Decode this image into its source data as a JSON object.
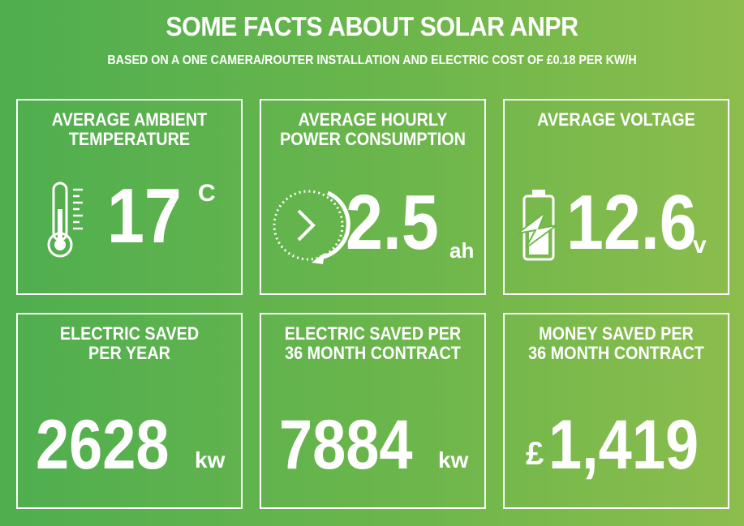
{
  "header": {
    "title": "SOME FACTS ABOUT SOLAR ANPR",
    "subtitle": "BASED ON A ONE CAMERA/ROUTER INSTALLATION AND ELECTRIC COST OF £0.18 PER KW/H"
  },
  "cards": [
    {
      "label_lines": [
        "AVERAGE AMBIENT",
        "TEMPERATURE"
      ],
      "value": "17",
      "unit": "C",
      "icon": "thermometer-icon"
    },
    {
      "label_lines": [
        "AVERAGE HOURLY",
        "POWER CONSUMPTION"
      ],
      "value": "2.5",
      "unit": "ah",
      "icon": "clock-arrow-icon"
    },
    {
      "label_lines": [
        "AVERAGE VOLTAGE"
      ],
      "value": "12.6",
      "unit": "v",
      "icon": "battery-charging-icon"
    },
    {
      "label_lines": [
        "ELECTRIC SAVED",
        "PER YEAR"
      ],
      "value": "2628",
      "unit": "kw"
    },
    {
      "label_lines": [
        "ELECTRIC SAVED PER",
        "36 MONTH CONTRACT"
      ],
      "value": "7884",
      "unit": "kw"
    },
    {
      "label_lines": [
        "MONEY SAVED PER",
        "36 MONTH CONTRACT"
      ],
      "value": "1,419",
      "currency": "£"
    }
  ],
  "colors": {
    "background_start": "#4fae4f",
    "background_end": "#8cbd4d",
    "foreground": "#ffffff"
  }
}
